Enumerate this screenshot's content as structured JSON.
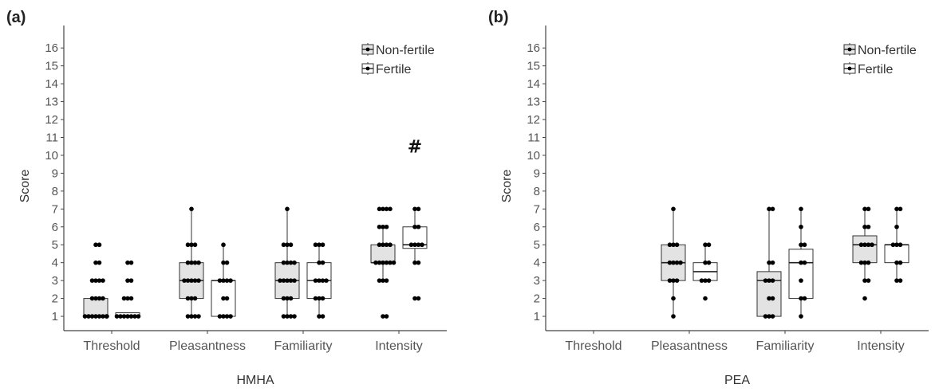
{
  "chart_data": [
    {
      "type": "box",
      "panel_label": "(a)",
      "xlabel": "HMHA",
      "ylabel": "Score",
      "ylim": [
        1,
        16
      ],
      "y_ticks": [
        1,
        2,
        3,
        4,
        5,
        6,
        7,
        8,
        9,
        10,
        11,
        12,
        13,
        14,
        15,
        16
      ],
      "categories": [
        "Threshold",
        "Pleasantness",
        "Familiarity",
        "Intensity"
      ],
      "legend": {
        "position": "top-right",
        "entries": [
          {
            "name": "Non-fertile",
            "fill": "#e3e3e3"
          },
          {
            "name": "Fertile",
            "fill": "#ffffff"
          }
        ]
      },
      "annotation": {
        "text": "#",
        "category": "Intensity",
        "y": 10.5
      },
      "series": [
        {
          "name": "Non-fertile",
          "boxes": [
            {
              "min": 1,
              "q1": 1,
              "median": 1,
              "q3": 2,
              "max": 2,
              "points": [
                1,
                1,
                1,
                1,
                1,
                1,
                1,
                1,
                2,
                2,
                2,
                2,
                3,
                3,
                3,
                3,
                4,
                4,
                5,
                5
              ]
            },
            {
              "min": 1,
              "q1": 2,
              "median": 3,
              "q3": 4,
              "max": 7,
              "points": [
                1,
                1,
                1,
                1,
                2,
                2,
                2,
                3,
                3,
                3,
                3,
                3,
                4,
                4,
                4,
                4,
                5,
                5,
                5,
                7
              ]
            },
            {
              "min": 1,
              "q1": 2,
              "median": 3,
              "q3": 4,
              "max": 7,
              "points": [
                1,
                1,
                1,
                1,
                2,
                2,
                2,
                3,
                3,
                3,
                3,
                3,
                4,
                4,
                4,
                4,
                5,
                5,
                5,
                7
              ]
            },
            {
              "min": 3,
              "q1": 4,
              "median": 4,
              "q3": 5,
              "max": 6,
              "points": [
                1,
                1,
                3,
                3,
                3,
                4,
                4,
                4,
                4,
                4,
                4,
                5,
                5,
                5,
                5,
                6,
                6,
                6,
                7,
                7,
                7,
                7
              ]
            }
          ]
        },
        {
          "name": "Fertile",
          "boxes": [
            {
              "min": 1,
              "q1": 1,
              "median": 1,
              "q3": 1.2,
              "max": 1.2,
              "points": [
                1,
                1,
                1,
                1,
                1,
                1,
                1,
                2,
                2,
                2,
                3,
                3,
                4,
                4
              ]
            },
            {
              "min": 1,
              "q1": 1,
              "median": 3,
              "q3": 3,
              "max": 5,
              "points": [
                1,
                1,
                1,
                1,
                2,
                2,
                3,
                3,
                3,
                3,
                4,
                4,
                5
              ]
            },
            {
              "min": 1,
              "q1": 2,
              "median": 3,
              "q3": 4,
              "max": 5,
              "points": [
                1,
                1,
                2,
                2,
                2,
                3,
                3,
                3,
                3,
                4,
                4,
                5,
                5,
                5
              ]
            },
            {
              "min": 4,
              "q1": 4.8,
              "median": 5,
              "q3": 6,
              "max": 7,
              "points": [
                2,
                2,
                4,
                4,
                5,
                5,
                5,
                5,
                6,
                6,
                7,
                7
              ]
            }
          ]
        }
      ]
    },
    {
      "type": "box",
      "panel_label": "(b)",
      "xlabel": "PEA",
      "ylabel": "Score",
      "ylim": [
        1,
        16
      ],
      "y_ticks": [
        1,
        2,
        3,
        4,
        5,
        6,
        7,
        8,
        9,
        10,
        11,
        12,
        13,
        14,
        15,
        16
      ],
      "categories": [
        "Threshold",
        "Pleasantness",
        "Familiarity",
        "Intensity"
      ],
      "legend": {
        "position": "top-right",
        "entries": [
          {
            "name": "Non-fertile",
            "fill": "#e3e3e3"
          },
          {
            "name": "Fertile",
            "fill": "#ffffff"
          }
        ]
      },
      "series": [
        {
          "name": "Non-fertile",
          "boxes": [
            null,
            {
              "min": 1,
              "q1": 3,
              "median": 4,
              "q3": 5,
              "max": 7,
              "points": [
                1,
                2,
                3,
                3,
                3,
                4,
                4,
                4,
                4,
                5,
                5,
                5,
                7
              ]
            },
            {
              "min": 1,
              "q1": 1,
              "median": 3,
              "q3": 3.5,
              "max": 7,
              "points": [
                1,
                1,
                1,
                2,
                2,
                3,
                3,
                3,
                4,
                4,
                7,
                7
              ]
            },
            {
              "min": 3,
              "q1": 4,
              "median": 5,
              "q3": 5.5,
              "max": 7,
              "points": [
                2,
                3,
                3,
                4,
                4,
                4,
                5,
                5,
                5,
                5,
                6,
                6,
                7,
                7
              ]
            }
          ]
        },
        {
          "name": "Fertile",
          "boxes": [
            null,
            {
              "min": 3,
              "q1": 3,
              "median": 3.5,
              "q3": 4,
              "max": 5,
              "points": [
                2,
                3,
                3,
                3,
                4,
                4,
                5,
                5
              ]
            },
            {
              "min": 1,
              "q1": 2,
              "median": 4,
              "q3": 4.75,
              "max": 7,
              "points": [
                1,
                2,
                2,
                3,
                4,
                4,
                5,
                5,
                6,
                7
              ]
            },
            {
              "min": 3,
              "q1": 4,
              "median": 5,
              "q3": 5,
              "max": 7,
              "points": [
                3,
                3,
                4,
                4,
                5,
                5,
                5,
                6,
                7,
                7
              ]
            }
          ]
        }
      ]
    }
  ]
}
